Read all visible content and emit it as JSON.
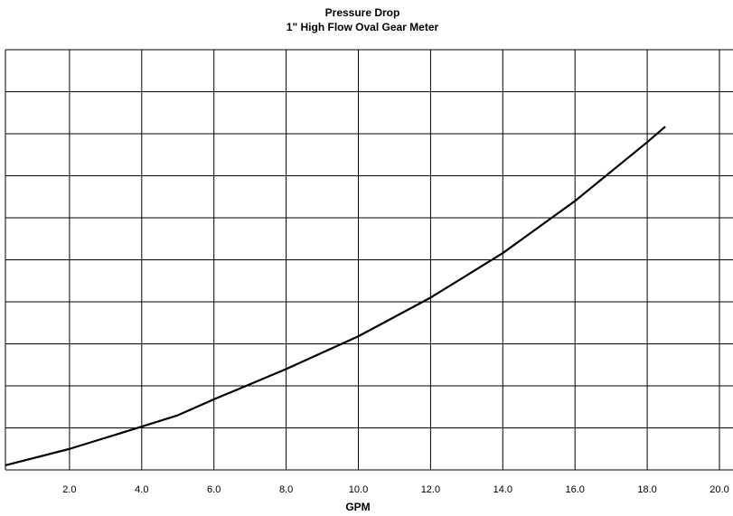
{
  "chart_data": {
    "type": "line",
    "title": "Pressure Drop",
    "subtitle": "1\" High Flow Oval Gear Meter",
    "x_label": "GPM",
    "x": [
      0,
      2,
      4,
      5,
      6,
      8,
      10,
      12,
      14,
      16,
      18,
      18.5
    ],
    "series": [
      {
        "name": "Pressure Drop",
        "color": "#000000",
        "values": [
          0.06,
          0.5,
          1.03,
          1.3,
          1.68,
          2.4,
          3.18,
          4.1,
          5.16,
          6.4,
          7.8,
          8.17
        ]
      }
    ],
    "xlim": [
      0,
      20
    ],
    "xticks": [
      {
        "value": 2,
        "label": "2.0"
      },
      {
        "value": 4,
        "label": "4.0"
      },
      {
        "value": 6,
        "label": "6.0"
      },
      {
        "value": 8,
        "label": "8.0"
      },
      {
        "value": 10,
        "label": "10.0"
      },
      {
        "value": 12,
        "label": "12.0"
      },
      {
        "value": 14,
        "label": "14.0"
      },
      {
        "value": 16,
        "label": "16.0"
      },
      {
        "value": 18,
        "label": "18.0"
      },
      {
        "value": 20,
        "label": "20.0"
      }
    ],
    "ylim": [
      0,
      10
    ],
    "yticks": [
      0,
      1,
      2,
      3,
      4,
      5,
      6,
      7,
      8,
      9,
      10
    ],
    "grid": true
  }
}
